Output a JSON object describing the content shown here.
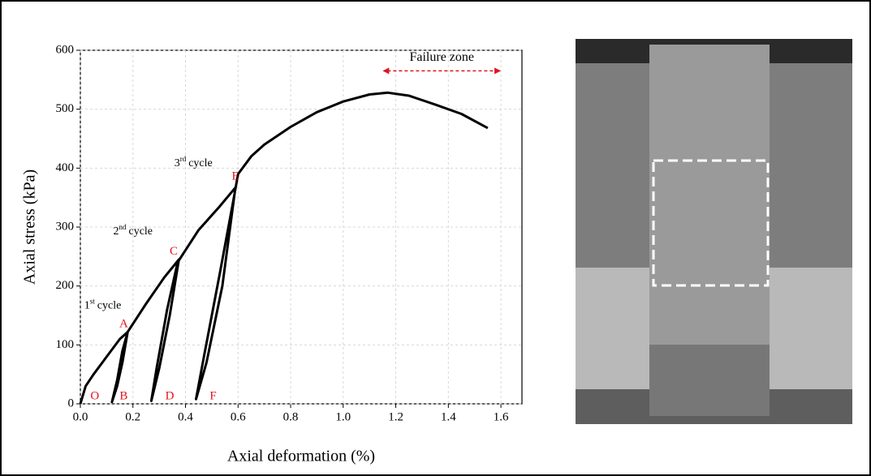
{
  "chart_data": {
    "type": "line",
    "x_label": "Axial deformation (%)",
    "y_label": "Axial stress (kPa)",
    "xlim": [
      0,
      1.68
    ],
    "ylim": [
      0,
      600
    ],
    "xticks": [
      {
        "value": 0,
        "label": "0.0"
      },
      {
        "value": 0.2,
        "label": "0.2"
      },
      {
        "value": 0.4,
        "label": "0.4"
      },
      {
        "value": 0.6,
        "label": "0.6"
      },
      {
        "value": 0.8,
        "label": "0.8"
      },
      {
        "value": 1,
        "label": "1.0"
      },
      {
        "value": 1.2,
        "label": "1.2"
      },
      {
        "value": 1.4,
        "label": "1.4"
      },
      {
        "value": 1.6,
        "label": "1.6"
      }
    ],
    "yticks": [
      0,
      100,
      200,
      300,
      400,
      500,
      600
    ],
    "grid": true,
    "series": [
      {
        "color": "#000000",
        "x": [
          0,
          0.02,
          0.05,
          0.1,
          0.15,
          0.18,
          0.16,
          0.14,
          0.12,
          0.14,
          0.16,
          0.18,
          0.25,
          0.32,
          0.375,
          0.34,
          0.3,
          0.27,
          0.29,
          0.33,
          0.37,
          0.45,
          0.53,
          0.59,
          0.54,
          0.48,
          0.44,
          0.47,
          0.53,
          0.58,
          0.6,
          0.65,
          0.7,
          0.8,
          0.9,
          1.0,
          1.1,
          1.17,
          1.25,
          1.35,
          1.45,
          1.55
        ],
        "values": [
          0,
          30,
          50,
          80,
          110,
          122,
          70,
          30,
          3,
          40,
          90,
          122,
          170,
          215,
          245,
          150,
          60,
          5,
          60,
          160,
          240,
          295,
          335,
          367,
          200,
          70,
          8,
          80,
          220,
          340,
          390,
          420,
          440,
          470,
          495,
          513,
          525,
          528,
          523,
          508,
          492,
          468
        ]
      }
    ],
    "point_labels": [
      "O",
      "A",
      "B",
      "C",
      "D",
      "E",
      "F"
    ],
    "cycle_labels": [
      {
        "n": "1",
        "sup": "st",
        "text": "cycle"
      },
      {
        "n": "2",
        "sup": "nd",
        "text": "cycle"
      },
      {
        "n": "3",
        "sup": "rd",
        "text": "cycle"
      }
    ],
    "failure_zone": {
      "label": "Failure zone",
      "from": 1.15,
      "to": 1.6,
      "y": 565
    }
  }
}
